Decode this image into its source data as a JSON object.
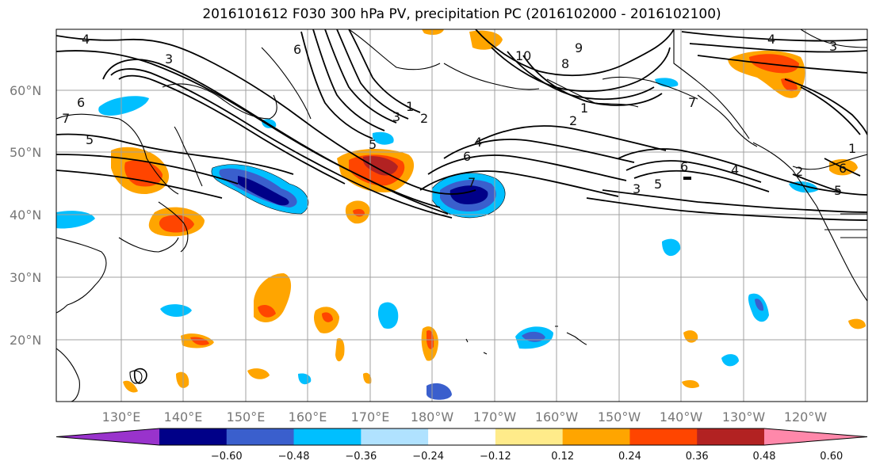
{
  "title": "2016101612 F030 300 hPa PV, precipitation PC (2016102000 - 2016102100)",
  "lat_labels": [
    "60°N",
    "50°N",
    "40°N",
    "30°N",
    "20°N"
  ],
  "lon_labels": [
    "130°E",
    "140°E",
    "150°E",
    "160°E",
    "170°E",
    "180°W",
    "170°W",
    "160°W",
    "150°W",
    "140°W",
    "130°W",
    "120°W"
  ],
  "contour_labels": [
    "4",
    "3",
    "6",
    "7",
    "5",
    "6",
    "1",
    "2",
    "3",
    "4",
    "5",
    "6",
    "7",
    "8",
    "9",
    "10",
    "1",
    "2",
    "3",
    "4",
    "5",
    "6",
    "7",
    "1",
    "2",
    "3",
    "4",
    "5",
    "6"
  ],
  "colorbar": {
    "ticks": [
      "−0.60",
      "−0.48",
      "−0.36",
      "−0.24",
      "−0.12",
      "0.12",
      "0.24",
      "0.36",
      "0.48",
      "0.60"
    ],
    "colors": [
      "#9933cc",
      "#000088",
      "#3a5fcd",
      "#00bfff",
      "#b0e2ff",
      "#ffffff",
      "#ffeb8a",
      "#ffa500",
      "#ff4500",
      "#b22222",
      "#ff88aa"
    ]
  }
}
